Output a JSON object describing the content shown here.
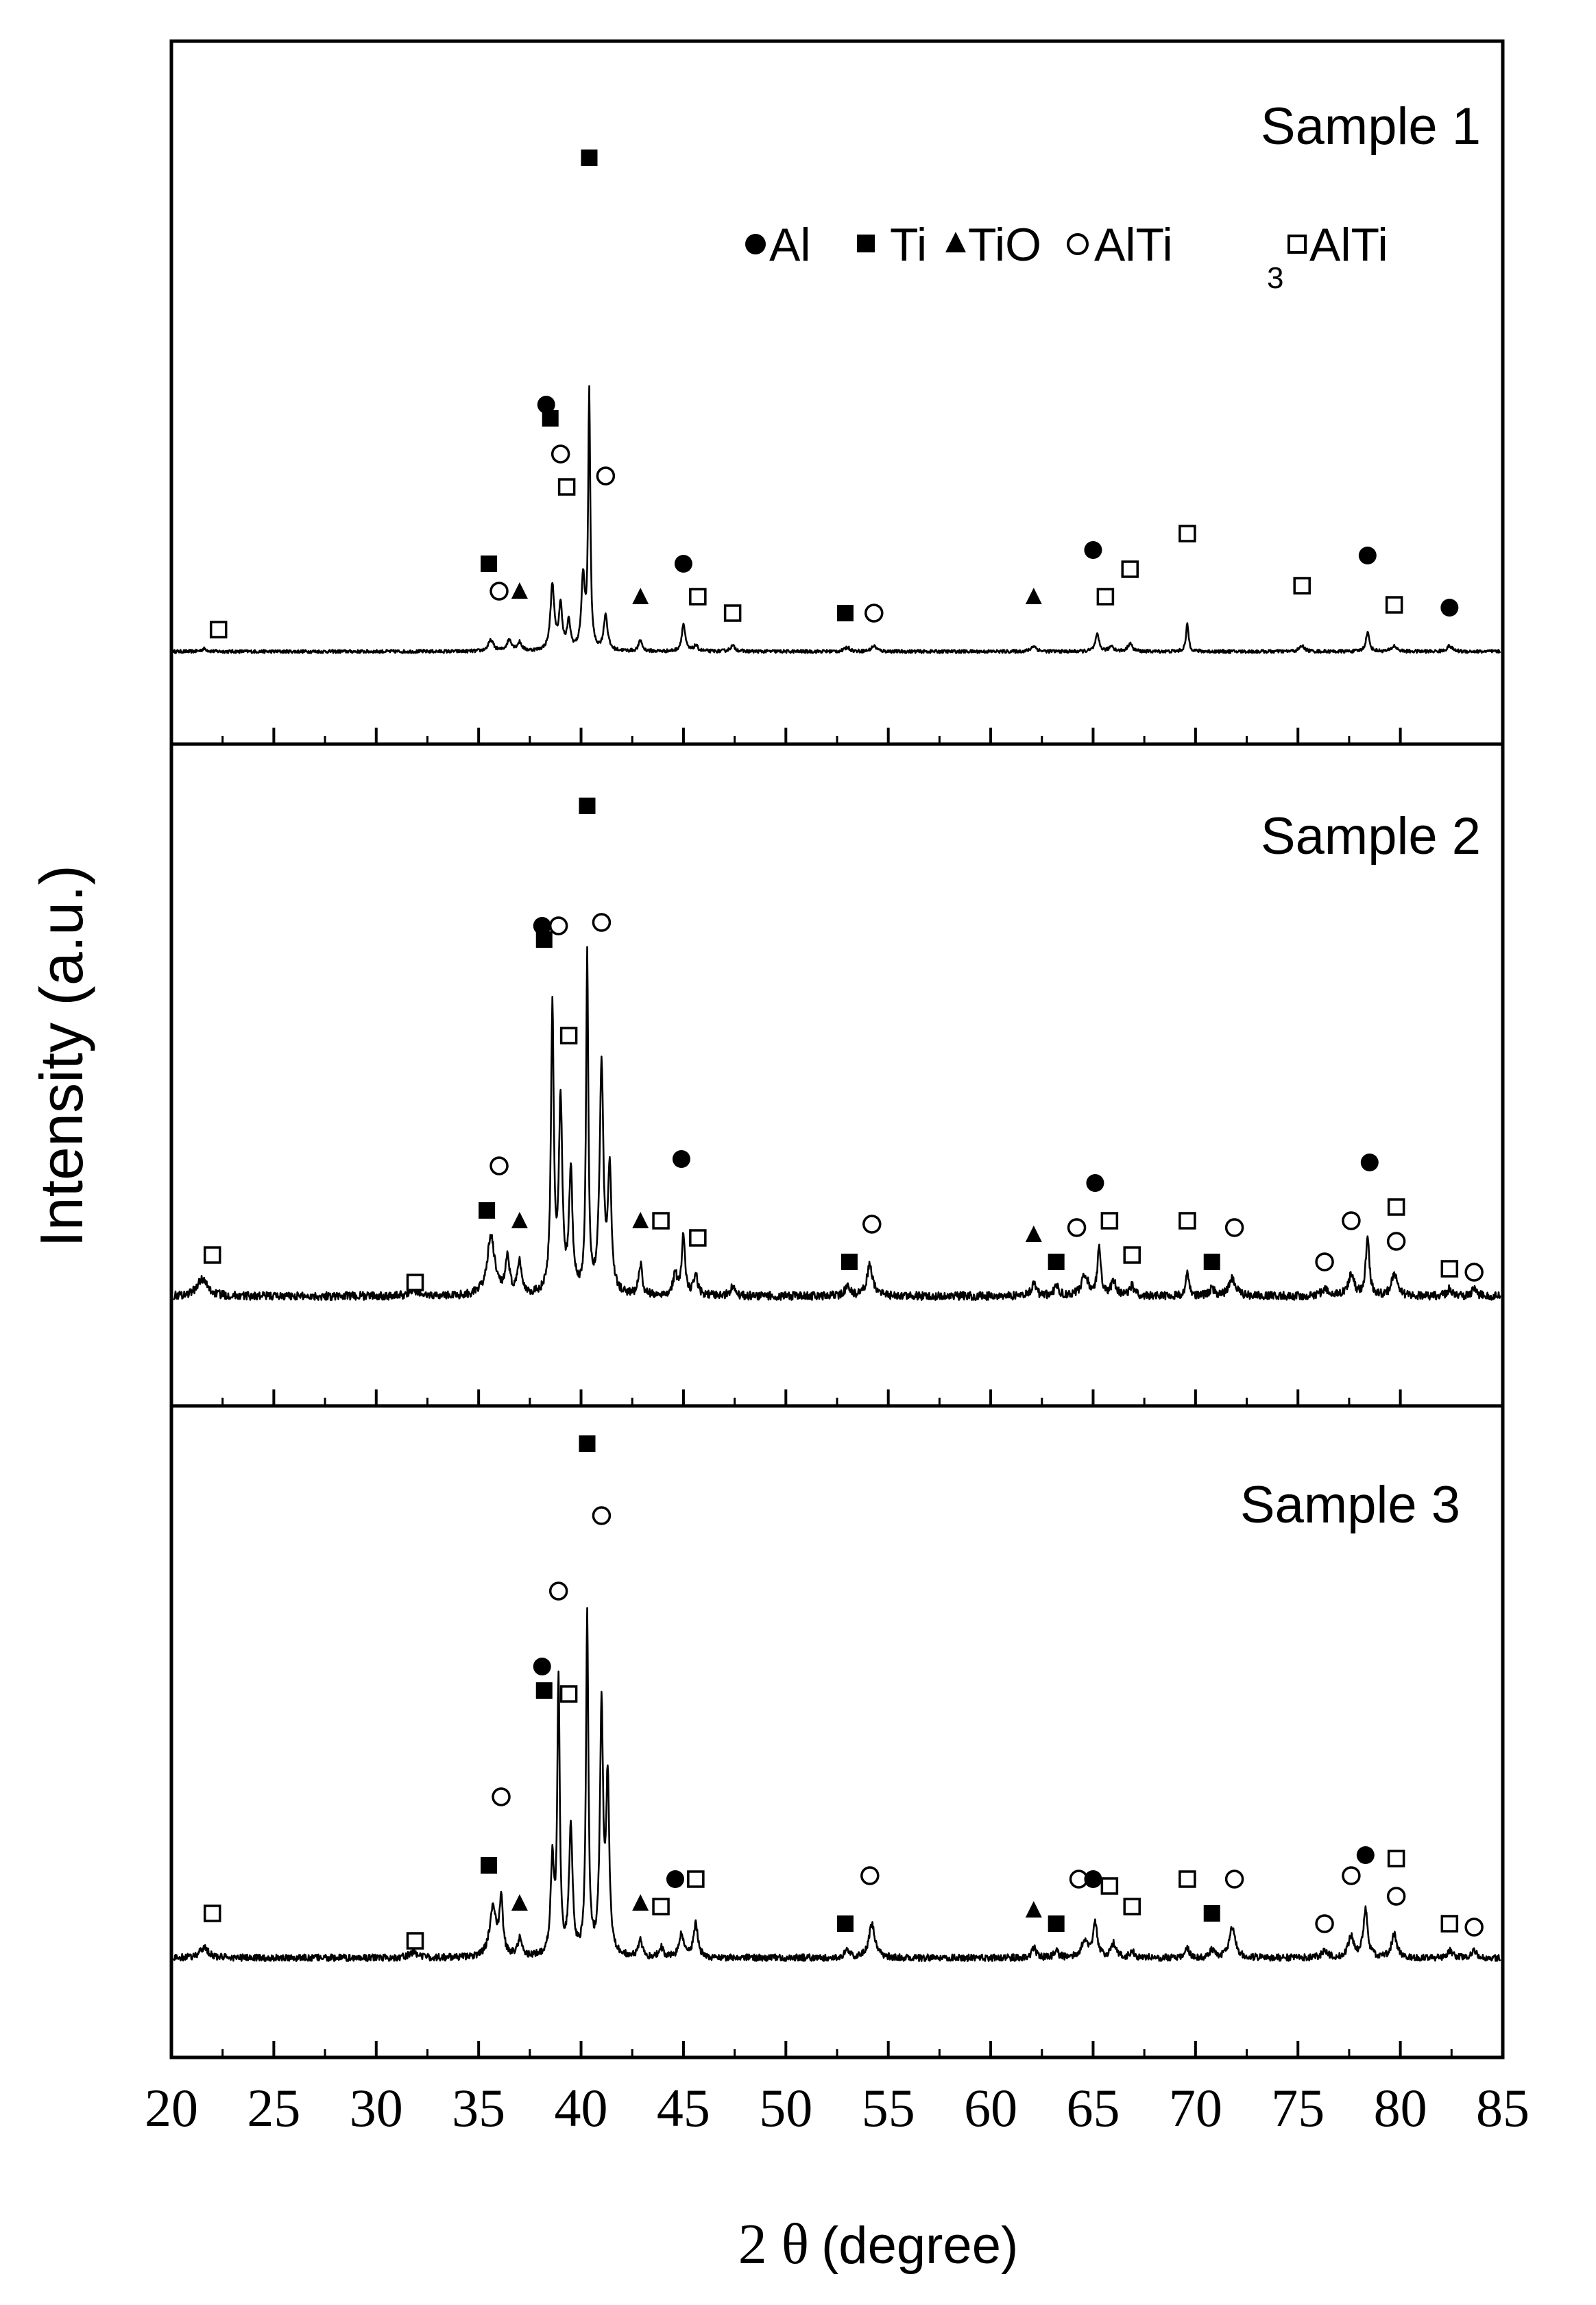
{
  "chart_data": {
    "type": "line",
    "xlabel_prefix": "2 θ",
    "xlabel_unit": "(degree)",
    "ylabel": "Intensity (a.u.)",
    "xlim": [
      20,
      85
    ],
    "x_ticks": [
      20,
      25,
      30,
      35,
      40,
      45,
      50,
      55,
      60,
      65,
      70,
      75,
      80,
      85
    ],
    "legend": {
      "placement": "top-right",
      "entries": [
        {
          "marker": "filled-circle",
          "label": "Al"
        },
        {
          "marker": "filled-square",
          "label": "Ti"
        },
        {
          "marker": "filled-triangle",
          "label": "TiO"
        },
        {
          "marker": "open-circle",
          "label": "AlTi",
          "subscript": "3"
        },
        {
          "marker": "open-square",
          "label": "AlTi"
        }
      ]
    },
    "panels": [
      {
        "name": "Sample 1",
        "baseline": 0.08,
        "noise": 0.006,
        "peaks": [
          [
            21.6,
            0.01,
            0.3
          ],
          [
            35.6,
            0.04,
            0.3
          ],
          [
            36.5,
            0.04,
            0.3
          ],
          [
            37.0,
            0.03,
            0.25
          ],
          [
            38.6,
            0.24,
            0.22
          ],
          [
            39.0,
            0.16,
            0.2
          ],
          [
            39.4,
            0.1,
            0.2
          ],
          [
            40.1,
            0.26,
            0.2
          ],
          [
            40.4,
            0.94,
            0.12
          ],
          [
            41.2,
            0.13,
            0.22
          ],
          [
            42.9,
            0.04,
            0.2
          ],
          [
            45.0,
            0.1,
            0.2
          ],
          [
            45.6,
            0.02,
            0.25
          ],
          [
            47.4,
            0.02,
            0.3
          ],
          [
            53.0,
            0.015,
            0.3
          ],
          [
            54.3,
            0.02,
            0.3
          ],
          [
            62.1,
            0.02,
            0.3
          ],
          [
            65.2,
            0.06,
            0.22
          ],
          [
            65.9,
            0.02,
            0.25
          ],
          [
            66.8,
            0.03,
            0.25
          ],
          [
            69.6,
            0.1,
            0.15
          ],
          [
            75.2,
            0.02,
            0.3
          ],
          [
            78.4,
            0.07,
            0.2
          ],
          [
            79.7,
            0.02,
            0.3
          ],
          [
            82.4,
            0.02,
            0.3
          ]
        ],
        "markers": [
          {
            "x": 22.3,
            "y": 0.16,
            "type": "open-square"
          },
          {
            "x": 35.5,
            "y": 0.4,
            "type": "filled-square"
          },
          {
            "x": 36.0,
            "y": 0.3,
            "type": "open-circle"
          },
          {
            "x": 37.0,
            "y": 0.3,
            "type": "filled-triangle"
          },
          {
            "x": 38.3,
            "y": 0.98,
            "type": "filled-circle"
          },
          {
            "x": 38.5,
            "y": 0.93,
            "type": "filled-square"
          },
          {
            "x": 39.0,
            "y": 0.8,
            "type": "open-circle"
          },
          {
            "x": 39.3,
            "y": 0.68,
            "type": "open-square"
          },
          {
            "x": 40.4,
            "y": 1.88,
            "type": "filled-square"
          },
          {
            "x": 41.2,
            "y": 0.72,
            "type": "open-circle"
          },
          {
            "x": 42.9,
            "y": 0.28,
            "type": "filled-triangle"
          },
          {
            "x": 45.0,
            "y": 0.4,
            "type": "filled-circle"
          },
          {
            "x": 45.7,
            "y": 0.28,
            "type": "open-square"
          },
          {
            "x": 47.4,
            "y": 0.22,
            "type": "open-square"
          },
          {
            "x": 52.9,
            "y": 0.22,
            "type": "filled-square"
          },
          {
            "x": 54.3,
            "y": 0.22,
            "type": "open-circle"
          },
          {
            "x": 62.1,
            "y": 0.28,
            "type": "filled-triangle"
          },
          {
            "x": 65.0,
            "y": 0.45,
            "type": "filled-circle"
          },
          {
            "x": 65.6,
            "y": 0.28,
            "type": "open-square"
          },
          {
            "x": 66.8,
            "y": 0.38,
            "type": "open-square"
          },
          {
            "x": 69.6,
            "y": 0.51,
            "type": "open-square"
          },
          {
            "x": 75.2,
            "y": 0.32,
            "type": "open-square"
          },
          {
            "x": 78.4,
            "y": 0.43,
            "type": "filled-circle"
          },
          {
            "x": 79.7,
            "y": 0.25,
            "type": "open-square"
          },
          {
            "x": 82.4,
            "y": 0.24,
            "type": "filled-circle"
          }
        ]
      },
      {
        "name": "Sample 2",
        "baseline": 0.12,
        "noise": 0.012,
        "peaks": [
          [
            21.5,
            0.05,
            0.6
          ],
          [
            31.8,
            0.015,
            0.5
          ],
          [
            35.6,
            0.17,
            0.45
          ],
          [
            36.4,
            0.1,
            0.25
          ],
          [
            37.0,
            0.09,
            0.25
          ],
          [
            38.6,
            0.83,
            0.16
          ],
          [
            39.0,
            0.55,
            0.2
          ],
          [
            39.5,
            0.35,
            0.2
          ],
          [
            40.3,
            0.98,
            0.13
          ],
          [
            41.0,
            0.66,
            0.22
          ],
          [
            41.4,
            0.35,
            0.2
          ],
          [
            42.9,
            0.09,
            0.2
          ],
          [
            44.6,
            0.06,
            0.25
          ],
          [
            45.0,
            0.18,
            0.18
          ],
          [
            45.6,
            0.06,
            0.22
          ],
          [
            47.4,
            0.03,
            0.25
          ],
          [
            53.0,
            0.025,
            0.3
          ],
          [
            54.1,
            0.09,
            0.35
          ],
          [
            62.1,
            0.04,
            0.25
          ],
          [
            63.2,
            0.03,
            0.25
          ],
          [
            64.6,
            0.06,
            0.4
          ],
          [
            65.3,
            0.14,
            0.2
          ],
          [
            66.0,
            0.04,
            0.3
          ],
          [
            66.9,
            0.03,
            0.25
          ],
          [
            69.6,
            0.08,
            0.15
          ],
          [
            70.8,
            0.02,
            0.3
          ],
          [
            71.8,
            0.05,
            0.4
          ],
          [
            76.3,
            0.02,
            0.35
          ],
          [
            77.6,
            0.06,
            0.35
          ],
          [
            78.4,
            0.18,
            0.2
          ],
          [
            79.7,
            0.07,
            0.3
          ],
          [
            82.4,
            0.02,
            0.3
          ],
          [
            83.6,
            0.02,
            0.3
          ]
        ],
        "markers": [
          {
            "x": 22.0,
            "y": 0.24,
            "type": "open-square"
          },
          {
            "x": 31.9,
            "y": 0.16,
            "type": "open-square"
          },
          {
            "x": 35.4,
            "y": 0.37,
            "type": "filled-square"
          },
          {
            "x": 36.0,
            "y": 0.5,
            "type": "open-circle"
          },
          {
            "x": 37.0,
            "y": 0.34,
            "type": "filled-triangle"
          },
          {
            "x": 38.1,
            "y": 1.2,
            "type": "filled-circle"
          },
          {
            "x": 38.2,
            "y": 1.16,
            "type": "filled-square"
          },
          {
            "x": 38.9,
            "y": 1.2,
            "type": "open-circle"
          },
          {
            "x": 39.4,
            "y": 0.88,
            "type": "open-square"
          },
          {
            "x": 40.3,
            "y": 1.55,
            "type": "filled-square"
          },
          {
            "x": 41.0,
            "y": 1.21,
            "type": "open-circle"
          },
          {
            "x": 42.9,
            "y": 0.34,
            "type": "filled-triangle"
          },
          {
            "x": 43.9,
            "y": 0.34,
            "type": "open-square"
          },
          {
            "x": 44.9,
            "y": 0.52,
            "type": "filled-circle"
          },
          {
            "x": 45.7,
            "y": 0.29,
            "type": "open-square"
          },
          {
            "x": 53.1,
            "y": 0.22,
            "type": "filled-square"
          },
          {
            "x": 54.2,
            "y": 0.33,
            "type": "open-circle"
          },
          {
            "x": 62.1,
            "y": 0.3,
            "type": "filled-triangle"
          },
          {
            "x": 63.2,
            "y": 0.22,
            "type": "filled-square"
          },
          {
            "x": 64.2,
            "y": 0.32,
            "type": "open-circle"
          },
          {
            "x": 65.1,
            "y": 0.45,
            "type": "filled-circle"
          },
          {
            "x": 65.8,
            "y": 0.34,
            "type": "open-square"
          },
          {
            "x": 66.9,
            "y": 0.24,
            "type": "open-square"
          },
          {
            "x": 69.6,
            "y": 0.34,
            "type": "open-square"
          },
          {
            "x": 70.8,
            "y": 0.22,
            "type": "filled-square"
          },
          {
            "x": 71.9,
            "y": 0.32,
            "type": "open-circle"
          },
          {
            "x": 76.3,
            "y": 0.22,
            "type": "open-circle"
          },
          {
            "x": 77.6,
            "y": 0.34,
            "type": "open-circle"
          },
          {
            "x": 78.5,
            "y": 0.51,
            "type": "filled-circle"
          },
          {
            "x": 79.8,
            "y": 0.38,
            "type": "open-square"
          },
          {
            "x": 79.8,
            "y": 0.28,
            "type": "open-circle"
          },
          {
            "x": 82.4,
            "y": 0.2,
            "type": "open-square"
          },
          {
            "x": 83.6,
            "y": 0.19,
            "type": "open-circle"
          }
        ]
      },
      {
        "name": "Sample 3",
        "baseline": 0.12,
        "noise": 0.01,
        "peaks": [
          [
            21.6,
            0.03,
            0.5
          ],
          [
            31.8,
            0.015,
            0.5
          ],
          [
            35.7,
            0.14,
            0.4
          ],
          [
            36.1,
            0.16,
            0.2
          ],
          [
            37.0,
            0.05,
            0.25
          ],
          [
            38.6,
            0.27,
            0.2
          ],
          [
            38.9,
            0.8,
            0.14
          ],
          [
            39.5,
            0.38,
            0.2
          ],
          [
            40.3,
            1.0,
            0.14
          ],
          [
            41.0,
            0.72,
            0.18
          ],
          [
            41.3,
            0.5,
            0.18
          ],
          [
            42.9,
            0.05,
            0.2
          ],
          [
            43.9,
            0.03,
            0.25
          ],
          [
            44.9,
            0.07,
            0.25
          ],
          [
            45.6,
            0.1,
            0.25
          ],
          [
            53.0,
            0.02,
            0.3
          ],
          [
            54.2,
            0.1,
            0.35
          ],
          [
            62.1,
            0.03,
            0.25
          ],
          [
            63.2,
            0.02,
            0.25
          ],
          [
            64.6,
            0.05,
            0.4
          ],
          [
            65.1,
            0.1,
            0.25
          ],
          [
            66.0,
            0.04,
            0.3
          ],
          [
            66.9,
            0.02,
            0.25
          ],
          [
            69.6,
            0.03,
            0.2
          ],
          [
            70.8,
            0.02,
            0.3
          ],
          [
            71.8,
            0.09,
            0.35
          ],
          [
            76.3,
            0.02,
            0.35
          ],
          [
            77.6,
            0.06,
            0.35
          ],
          [
            78.3,
            0.14,
            0.25
          ],
          [
            79.7,
            0.07,
            0.3
          ],
          [
            82.4,
            0.02,
            0.3
          ],
          [
            83.6,
            0.02,
            0.3
          ]
        ],
        "markers": [
          {
            "x": 22.0,
            "y": 0.25,
            "type": "open-square"
          },
          {
            "x": 31.9,
            "y": 0.17,
            "type": "open-square"
          },
          {
            "x": 35.5,
            "y": 0.39,
            "type": "filled-square"
          },
          {
            "x": 36.1,
            "y": 0.59,
            "type": "open-circle"
          },
          {
            "x": 37.0,
            "y": 0.28,
            "type": "filled-triangle"
          },
          {
            "x": 38.1,
            "y": 0.97,
            "type": "filled-circle"
          },
          {
            "x": 38.2,
            "y": 0.9,
            "type": "filled-square"
          },
          {
            "x": 38.9,
            "y": 1.19,
            "type": "open-circle"
          },
          {
            "x": 39.4,
            "y": 0.89,
            "type": "open-square"
          },
          {
            "x": 40.3,
            "y": 1.62,
            "type": "filled-square"
          },
          {
            "x": 41.0,
            "y": 1.41,
            "type": "open-circle"
          },
          {
            "x": 42.9,
            "y": 0.28,
            "type": "filled-triangle"
          },
          {
            "x": 43.9,
            "y": 0.27,
            "type": "open-square"
          },
          {
            "x": 44.6,
            "y": 0.35,
            "type": "filled-circle"
          },
          {
            "x": 45.6,
            "y": 0.35,
            "type": "open-square"
          },
          {
            "x": 52.9,
            "y": 0.22,
            "type": "filled-square"
          },
          {
            "x": 54.1,
            "y": 0.36,
            "type": "open-circle"
          },
          {
            "x": 62.1,
            "y": 0.26,
            "type": "filled-triangle"
          },
          {
            "x": 63.2,
            "y": 0.22,
            "type": "filled-square"
          },
          {
            "x": 64.3,
            "y": 0.35,
            "type": "open-circle"
          },
          {
            "x": 65.0,
            "y": 0.35,
            "type": "filled-circle"
          },
          {
            "x": 65.8,
            "y": 0.33,
            "type": "open-square"
          },
          {
            "x": 66.9,
            "y": 0.27,
            "type": "open-square"
          },
          {
            "x": 69.6,
            "y": 0.35,
            "type": "open-square"
          },
          {
            "x": 70.8,
            "y": 0.25,
            "type": "filled-square"
          },
          {
            "x": 71.9,
            "y": 0.35,
            "type": "open-circle"
          },
          {
            "x": 76.3,
            "y": 0.22,
            "type": "open-circle"
          },
          {
            "x": 77.6,
            "y": 0.36,
            "type": "open-circle"
          },
          {
            "x": 78.3,
            "y": 0.42,
            "type": "filled-circle"
          },
          {
            "x": 79.8,
            "y": 0.41,
            "type": "open-square"
          },
          {
            "x": 79.8,
            "y": 0.3,
            "type": "open-circle"
          },
          {
            "x": 82.4,
            "y": 0.22,
            "type": "open-square"
          },
          {
            "x": 83.6,
            "y": 0.21,
            "type": "open-circle"
          }
        ]
      }
    ]
  }
}
